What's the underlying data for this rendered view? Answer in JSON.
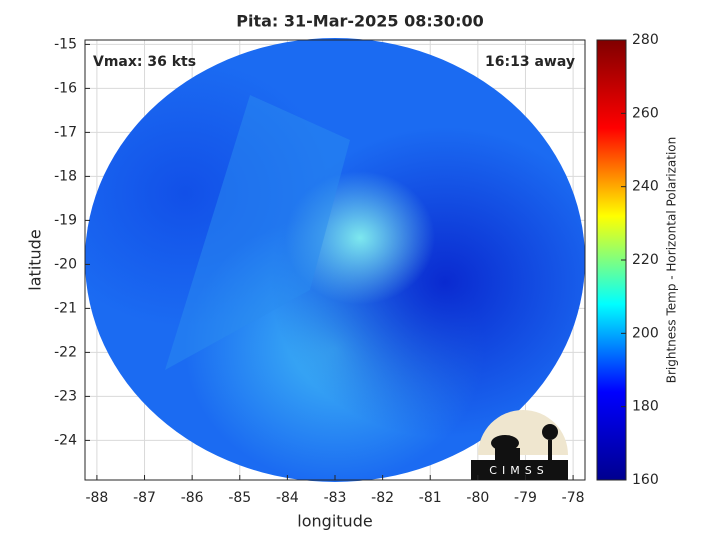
{
  "chart_data": {
    "type": "image",
    "title": "Pita: 31-Mar-2025 08:30:00",
    "x_label": "longitude",
    "y_label": "latitude",
    "annotations": [
      "Vmax: 36 kts",
      "16:13 away"
    ],
    "logo_text": "CIMSS",
    "xlim": [
      -88.25,
      -77.75
    ],
    "xticks": [
      -88,
      -87,
      -86,
      -85,
      -84,
      -83,
      -82,
      -81,
      -80,
      -79,
      -78
    ],
    "ylim": [
      -24.9,
      -14.9
    ],
    "yticks": [
      -24,
      -23,
      -22,
      -21,
      -20,
      -19,
      -18,
      -17,
      -16,
      -15
    ],
    "grid": true,
    "colorbar": {
      "label": "Brightness Temp - Horizontal Polarization",
      "colormap": "jet_r",
      "lim": [
        160,
        280
      ],
      "ticks": [
        160,
        180,
        200,
        220,
        240,
        260,
        280
      ]
    }
  }
}
